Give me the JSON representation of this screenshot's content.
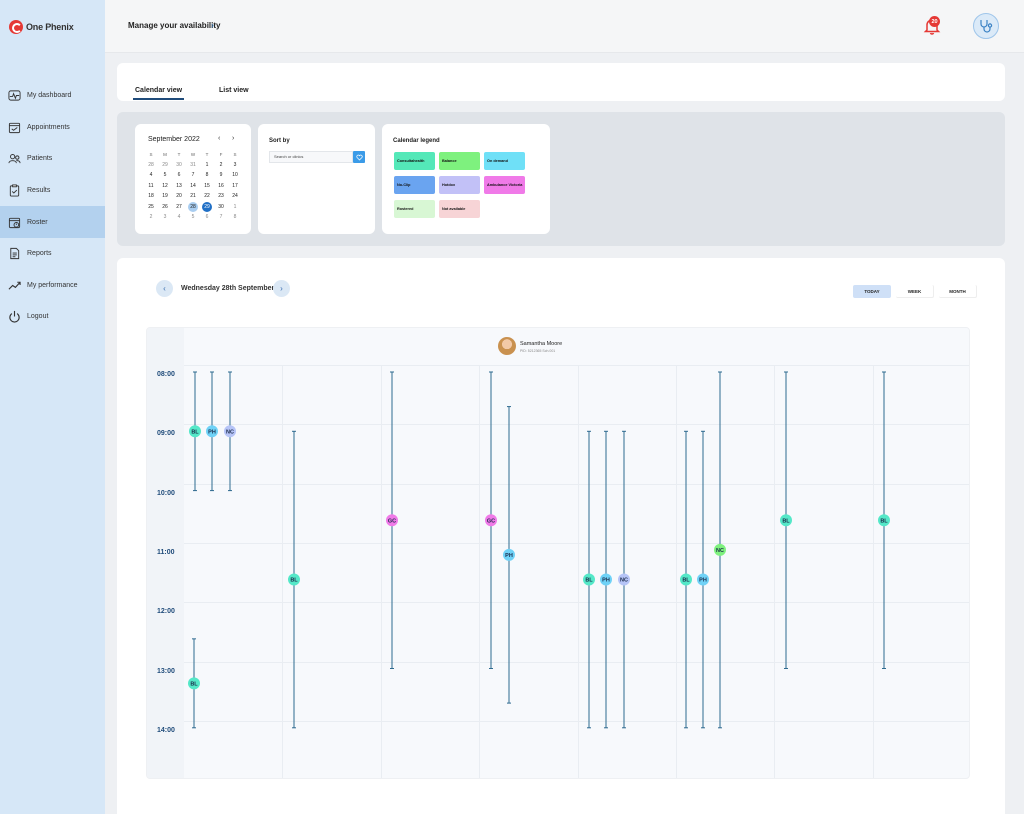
{
  "app": {
    "name": "One Phenix"
  },
  "sidebar": {
    "items": [
      {
        "label": "My dashboard",
        "icon": "dashboard-icon"
      },
      {
        "label": "Appointments",
        "icon": "calendar-check-icon"
      },
      {
        "label": "Patients",
        "icon": "users-icon"
      },
      {
        "label": "Results",
        "icon": "clipboard-icon"
      },
      {
        "label": "Roster",
        "icon": "roster-icon",
        "active": true
      },
      {
        "label": "Reports",
        "icon": "document-icon"
      },
      {
        "label": "My performance",
        "icon": "trend-icon"
      },
      {
        "label": "Logout",
        "icon": "power-icon"
      }
    ]
  },
  "header": {
    "title": "Manage your availability",
    "notifications": "20"
  },
  "tabs": [
    {
      "label": "Calendar view",
      "active": true
    },
    {
      "label": "List view"
    }
  ],
  "mini_calendar": {
    "month": "September 2022",
    "weekdays": [
      "S",
      "M",
      "T",
      "W",
      "T",
      "F",
      "S"
    ],
    "weeks": [
      [
        "28",
        "29",
        "30",
        "31",
        "1",
        "2",
        "3"
      ],
      [
        "4",
        "5",
        "6",
        "7",
        "8",
        "9",
        "10"
      ],
      [
        "11",
        "12",
        "13",
        "14",
        "15",
        "16",
        "17"
      ],
      [
        "18",
        "19",
        "20",
        "21",
        "22",
        "23",
        "24"
      ],
      [
        "25",
        "26",
        "27",
        "28",
        "29",
        "30",
        "1"
      ],
      [
        "2",
        "3",
        "4",
        "5",
        "6",
        "7",
        "8"
      ]
    ],
    "highlighted": "28",
    "selected": "29"
  },
  "sort": {
    "title": "Sort by",
    "placeholder": "Search or clinics"
  },
  "legend": {
    "title": "Calendar legend",
    "items": [
      {
        "label": "Consultahealth",
        "color": "#54e8b8"
      },
      {
        "label": "Balance",
        "color": "#7ef17e"
      },
      {
        "label": "On demand",
        "color": "#6fe0f7"
      },
      {
        "label": "No-Clip",
        "color": "#6aa4f0"
      },
      {
        "label": "Hotdox",
        "color": "#c2c1f7"
      },
      {
        "label": "Ambulance Victoria",
        "color": "#f07ae8"
      },
      {
        "label": "Rostered",
        "color": "#d8f7d4"
      },
      {
        "label": "Not available",
        "color": "#f7d4d6"
      }
    ]
  },
  "day_view": {
    "date": "Wednesday 28th September",
    "views": [
      "TODAY",
      "WEEK",
      "MONTH"
    ],
    "person": {
      "name": "Samantha Moore",
      "sub": "PID: 5212365 Sch.001"
    },
    "times": [
      "08:00",
      "09:00",
      "10:00",
      "11:00",
      "12:00",
      "13:00",
      "14:00"
    ],
    "badge_colors": {
      "BL": "#54e8c8",
      "PH": "#6fd2f7",
      "NC": "#b6c4f7",
      "GC": "#f07ae8",
      "NC-green": "#7ef17e"
    },
    "shifts": [
      {
        "code": "BL",
        "start": "08:00",
        "end": "10:00"
      },
      {
        "code": "PH",
        "start": "08:00",
        "end": "10:00"
      },
      {
        "code": "NC",
        "start": "08:00",
        "end": "10:00"
      },
      {
        "code": "BL",
        "start": "12:30",
        "end": "14:00"
      },
      {
        "code": "BL",
        "start": "09:00",
        "end": "14:00"
      },
      {
        "code": "GC",
        "start": "08:00",
        "end": "13:00"
      },
      {
        "code": "GC",
        "start": "08:00",
        "end": "13:00"
      },
      {
        "code": "PH",
        "start": "08:35",
        "end": "13:35"
      },
      {
        "code": "BL",
        "start": "09:00",
        "end": "14:00"
      },
      {
        "code": "PH",
        "start": "09:00",
        "end": "14:00"
      },
      {
        "code": "NC",
        "start": "09:00",
        "end": "14:00"
      },
      {
        "code": "BL",
        "start": "09:00",
        "end": "14:00"
      },
      {
        "code": "PH",
        "start": "09:00",
        "end": "14:00"
      },
      {
        "code": "NC",
        "start": "08:00",
        "end": "14:00",
        "variant": "green"
      },
      {
        "code": "BL",
        "start": "08:00",
        "end": "13:00"
      },
      {
        "code": "BL",
        "start": "08:00",
        "end": "13:00"
      }
    ]
  }
}
